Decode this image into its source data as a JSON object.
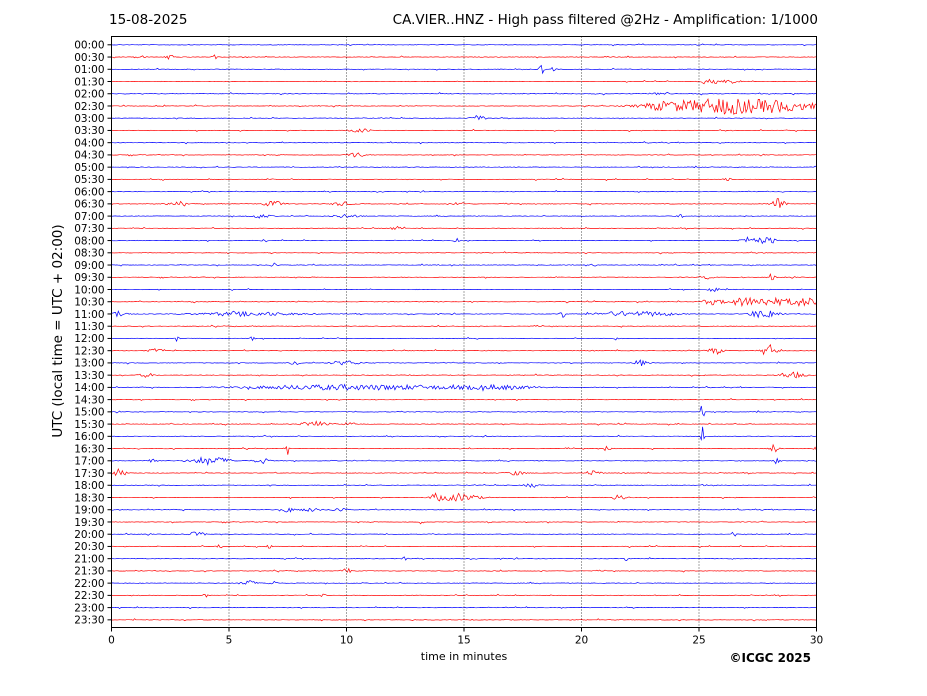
{
  "header": {
    "date": "15-08-2025",
    "title": "CA.VIER..HNZ - High pass filtered @2Hz - Amplification: 1/1000"
  },
  "footer": {
    "copyright": "©ICGC 2025"
  },
  "chart_data": {
    "type": "line",
    "title": "CA.VIER..HNZ - High pass filtered @2Hz - Amplification: 1/1000",
    "xlabel": "time in minutes",
    "ylabel": "UTC (local time = UTC + 02:00)",
    "xlim": [
      0,
      30
    ],
    "xticks": [
      0,
      5,
      10,
      15,
      20,
      25,
      30
    ],
    "vertical_gridlines": [
      5,
      10,
      15,
      20,
      25
    ],
    "colors": {
      "odd_row": "#0000ff",
      "even_row": "#ff0000",
      "grid": "#000000"
    },
    "rows": [
      "00:00",
      "00:30",
      "01:00",
      "01:30",
      "02:00",
      "02:30",
      "03:00",
      "03:30",
      "04:00",
      "04:30",
      "05:00",
      "05:30",
      "06:00",
      "06:30",
      "07:00",
      "07:30",
      "08:00",
      "08:30",
      "09:00",
      "09:30",
      "10:00",
      "10:30",
      "11:00",
      "11:30",
      "12:00",
      "12:30",
      "13:00",
      "13:30",
      "14:00",
      "14:30",
      "15:00",
      "15:30",
      "16:00",
      "16:30",
      "17:00",
      "17:30",
      "18:00",
      "18:30",
      "19:00",
      "19:30",
      "20:00",
      "20:30",
      "21:00",
      "21:30",
      "22:00",
      "22:30",
      "23:00",
      "23:30"
    ],
    "events": [
      {
        "row": "00:30",
        "bursts": [
          [
            1.2,
            0.2,
            2
          ],
          [
            2.5,
            0.15,
            4
          ],
          [
            4.4,
            0.1,
            2
          ],
          [
            21.1,
            0.1,
            2
          ]
        ]
      },
      {
        "row": "01:00",
        "bursts": [
          [
            18.3,
            0.1,
            5
          ],
          [
            18.8,
            0.1,
            2
          ]
        ]
      },
      {
        "row": "01:30",
        "bursts": [
          [
            25.4,
            0.2,
            6
          ],
          [
            25.7,
            0.1,
            4
          ],
          [
            26.3,
            0.3,
            2
          ]
        ]
      },
      {
        "row": "02:00",
        "bursts": [
          [
            23.2,
            0.2,
            2
          ],
          [
            23.7,
            0.1,
            2
          ]
        ]
      },
      {
        "row": "02:30",
        "bursts": [
          [
            23.8,
            1.2,
            5
          ],
          [
            25.9,
            1.2,
            6
          ],
          [
            28.0,
            2.0,
            6
          ]
        ]
      },
      {
        "row": "03:00",
        "bursts": [
          [
            15.6,
            0.25,
            4
          ]
        ]
      },
      {
        "row": "03:30",
        "bursts": [
          [
            10.6,
            0.4,
            2
          ]
        ]
      },
      {
        "row": "04:30",
        "bursts": [
          [
            10.4,
            0.3,
            3
          ]
        ]
      },
      {
        "row": "05:30",
        "bursts": [
          [
            26.2,
            0.15,
            3
          ]
        ]
      },
      {
        "row": "06:30",
        "bursts": [
          [
            2.8,
            0.4,
            2
          ],
          [
            6.9,
            0.4,
            3
          ],
          [
            9.8,
            0.4,
            2
          ],
          [
            14.8,
            0.2,
            3
          ],
          [
            28.4,
            0.3,
            6
          ]
        ]
      },
      {
        "row": "07:00",
        "bursts": [
          [
            6.3,
            0.4,
            2
          ],
          [
            10.0,
            0.5,
            2
          ],
          [
            24.2,
            0.1,
            3
          ]
        ]
      },
      {
        "row": "07:30",
        "bursts": [
          [
            12.1,
            0.2,
            2
          ]
        ]
      },
      {
        "row": "08:00",
        "bursts": [
          [
            6.5,
            0.1,
            3
          ],
          [
            14.7,
            0.1,
            3
          ],
          [
            27.3,
            0.5,
            3
          ],
          [
            28.0,
            0.3,
            3
          ]
        ]
      },
      {
        "row": "09:00",
        "bursts": [
          [
            6.9,
            0.1,
            4
          ],
          [
            20.5,
            0.1,
            3
          ]
        ]
      },
      {
        "row": "09:30",
        "bursts": [
          [
            25.4,
            0.2,
            2
          ],
          [
            28.1,
            0.15,
            3
          ]
        ]
      },
      {
        "row": "10:00",
        "bursts": [
          [
            25.6,
            0.2,
            3
          ]
        ]
      },
      {
        "row": "10:30",
        "bursts": [
          [
            25.6,
            0.4,
            3
          ],
          [
            26.8,
            0.5,
            3
          ],
          [
            27.9,
            1.0,
            4
          ],
          [
            29.5,
            0.6,
            4
          ]
        ]
      },
      {
        "row": "11:00",
        "bursts": [
          [
            0.3,
            0.4,
            3
          ],
          [
            5.8,
            2.0,
            2
          ],
          [
            19.2,
            0.1,
            4
          ],
          [
            21.5,
            1.0,
            2
          ],
          [
            23.0,
            1.0,
            2
          ],
          [
            27.4,
            0.3,
            3
          ],
          [
            28.0,
            0.4,
            4
          ]
        ]
      },
      {
        "row": "12:00",
        "bursts": [
          [
            2.8,
            0.1,
            3
          ],
          [
            6.0,
            0.1,
            2
          ],
          [
            21.5,
            0.1,
            2
          ]
        ]
      },
      {
        "row": "12:30",
        "bursts": [
          [
            1.9,
            0.3,
            2
          ],
          [
            25.7,
            0.3,
            3
          ],
          [
            28.0,
            0.3,
            6
          ]
        ]
      },
      {
        "row": "13:00",
        "bursts": [
          [
            7.8,
            0.2,
            3
          ],
          [
            10.0,
            0.6,
            2
          ],
          [
            22.5,
            0.3,
            3
          ]
        ]
      },
      {
        "row": "13:30",
        "bursts": [
          [
            1.5,
            0.3,
            2
          ],
          [
            29.0,
            0.5,
            3
          ]
        ]
      },
      {
        "row": "14:00",
        "bursts": [
          [
            8.5,
            3.0,
            2
          ],
          [
            12.5,
            3.0,
            2
          ],
          [
            16.5,
            1.5,
            2
          ]
        ]
      },
      {
        "row": "15:00",
        "bursts": [
          [
            25.15,
            0.05,
            18
          ]
        ]
      },
      {
        "row": "15:30",
        "bursts": [
          [
            8.6,
            0.5,
            3
          ],
          [
            10.1,
            0.2,
            2
          ]
        ]
      },
      {
        "row": "16:00",
        "bursts": [
          [
            25.15,
            0.05,
            12
          ]
        ]
      },
      {
        "row": "16:30",
        "bursts": [
          [
            7.5,
            0.05,
            6
          ],
          [
            21.1,
            0.1,
            5
          ],
          [
            28.2,
            0.2,
            4
          ],
          [
            30.0,
            0.1,
            2
          ]
        ]
      },
      {
        "row": "17:00",
        "bursts": [
          [
            1.7,
            0.2,
            3
          ],
          [
            4.2,
            0.8,
            4
          ],
          [
            6.4,
            0.3,
            3
          ],
          [
            28.3,
            0.1,
            3
          ]
        ]
      },
      {
        "row": "17:30",
        "bursts": [
          [
            0.3,
            0.3,
            4
          ],
          [
            17.2,
            0.4,
            2
          ],
          [
            20.5,
            0.3,
            3
          ]
        ]
      },
      {
        "row": "18:00",
        "bursts": [
          [
            17.9,
            0.3,
            2
          ],
          [
            25.2,
            0.1,
            2
          ]
        ]
      },
      {
        "row": "18:30",
        "bursts": [
          [
            13.8,
            0.2,
            4
          ],
          [
            14.8,
            0.8,
            4
          ],
          [
            21.6,
            0.3,
            3
          ]
        ]
      },
      {
        "row": "19:00",
        "bursts": [
          [
            7.5,
            0.2,
            3
          ],
          [
            8.4,
            0.4,
            2
          ],
          [
            9.7,
            0.3,
            2
          ]
        ]
      },
      {
        "row": "19:30",
        "bursts": [
          [
            13.2,
            0.05,
            9
          ],
          [
            16.1,
            0.1,
            3
          ]
        ]
      },
      {
        "row": "20:00",
        "bursts": [
          [
            3.6,
            0.4,
            2
          ],
          [
            26.5,
            0.1,
            2
          ]
        ]
      },
      {
        "row": "20:30",
        "bursts": [
          [
            4.6,
            0.1,
            2
          ],
          [
            6.7,
            0.1,
            2
          ]
        ]
      },
      {
        "row": "21:00",
        "bursts": [
          [
            12.5,
            0.1,
            2
          ],
          [
            21.9,
            0.1,
            2
          ]
        ]
      },
      {
        "row": "21:30",
        "bursts": [
          [
            10.0,
            0.2,
            3
          ]
        ]
      },
      {
        "row": "22:00",
        "bursts": [
          [
            5.8,
            0.3,
            3
          ],
          [
            6.8,
            0.2,
            3
          ]
        ]
      },
      {
        "row": "22:30",
        "bursts": [
          [
            4.0,
            0.1,
            2
          ],
          [
            9.0,
            0.1,
            2
          ]
        ]
      }
    ]
  }
}
